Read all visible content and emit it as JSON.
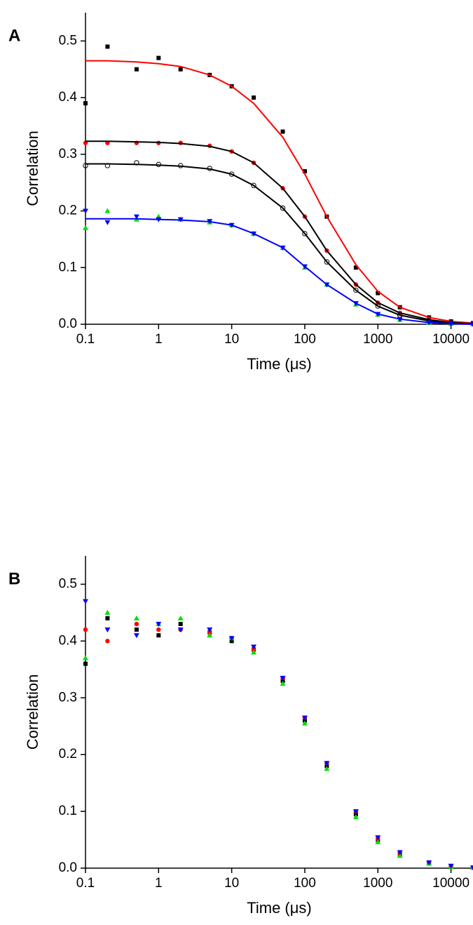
{
  "chart_data": [
    {
      "type": "scatter",
      "panel_label": "A",
      "x_label": "Time (μs)",
      "y_label": "Correlation",
      "x": [
        0.1,
        0.2,
        0.5,
        1,
        2,
        5,
        10,
        20,
        50,
        100,
        200,
        500,
        1000,
        2000,
        5000,
        10000,
        20000
      ],
      "xlim": [
        0.1,
        20000
      ],
      "xticks": [
        0.1,
        1,
        10,
        100,
        1000,
        10000
      ],
      "xscale": "log",
      "ylim": [
        0,
        0.55
      ],
      "yticks": [
        {
          "value": 0,
          "label": "0.0"
        },
        0.1,
        0.2,
        0.3,
        0.4,
        0.5
      ],
      "series": [
        {
          "marker": "square",
          "color": "#000000",
          "values": [
            0.39,
            0.49,
            0.45,
            0.47,
            0.45,
            0.44,
            0.42,
            0.4,
            0.34,
            0.27,
            0.19,
            0.1,
            0.055,
            0.03,
            0.012,
            0.005,
            0.002
          ]
        },
        {
          "marker": "line",
          "color": "#ff0000",
          "values": [
            0.465,
            0.465,
            0.463,
            0.46,
            0.455,
            0.44,
            0.42,
            0.39,
            0.33,
            0.265,
            0.19,
            0.105,
            0.058,
            0.03,
            0.012,
            0.005,
            0.002
          ]
        },
        {
          "marker": "circle",
          "color": "#ff0000",
          "values": [
            0.32,
            0.32,
            0.32,
            0.32,
            0.32,
            0.315,
            0.305,
            0.285,
            0.24,
            0.19,
            0.13,
            0.07,
            0.038,
            0.02,
            0.008,
            0.003,
            0.001
          ]
        },
        {
          "marker": "line",
          "color": "#000000",
          "values": [
            0.323,
            0.323,
            0.322,
            0.321,
            0.319,
            0.314,
            0.305,
            0.285,
            0.24,
            0.19,
            0.13,
            0.07,
            0.038,
            0.02,
            0.008,
            0.003,
            0.001
          ]
        },
        {
          "marker": "circle-open",
          "color": "#000000",
          "values": [
            0.28,
            0.28,
            0.285,
            0.282,
            0.28,
            0.275,
            0.265,
            0.245,
            0.205,
            0.16,
            0.11,
            0.06,
            0.032,
            0.016,
            0.006,
            0.002,
            0.001
          ]
        },
        {
          "marker": "line",
          "color": "#000000",
          "values": [
            0.283,
            0.283,
            0.282,
            0.281,
            0.279,
            0.274,
            0.265,
            0.245,
            0.205,
            0.16,
            0.11,
            0.06,
            0.032,
            0.016,
            0.006,
            0.002,
            0.001
          ]
        },
        {
          "marker": "triangle-up",
          "color": "#00dd00",
          "values": [
            0.17,
            0.2,
            0.185,
            0.19,
            0.185,
            0.18,
            0.175,
            0.16,
            0.135,
            0.1,
            0.07,
            0.035,
            0.017,
            0.008,
            0.003,
            0.001,
            0
          ]
        },
        {
          "marker": "triangle-down",
          "color": "#0000ff",
          "values": [
            0.2,
            0.18,
            0.19,
            0.185,
            0.185,
            0.182,
            0.175,
            0.16,
            0.135,
            0.102,
            0.07,
            0.037,
            0.018,
            0.009,
            0.003,
            0.001,
            0
          ]
        },
        {
          "marker": "line",
          "color": "#0000ff",
          "values": [
            0.186,
            0.186,
            0.186,
            0.185,
            0.184,
            0.181,
            0.175,
            0.16,
            0.135,
            0.102,
            0.07,
            0.037,
            0.018,
            0.009,
            0.003,
            0.001,
            0
          ]
        }
      ]
    },
    {
      "type": "scatter",
      "panel_label": "B",
      "x_label": "Time (μs)",
      "y_label": "Correlation",
      "x": [
        0.1,
        0.2,
        0.5,
        1,
        2,
        5,
        10,
        20,
        50,
        100,
        200,
        500,
        1000,
        2000,
        5000,
        10000,
        20000
      ],
      "xlim": [
        0.1,
        20000
      ],
      "xticks": [
        0.1,
        1,
        10,
        100,
        1000,
        10000
      ],
      "xscale": "log",
      "ylim": [
        0,
        0.55
      ],
      "yticks": [
        {
          "value": 0,
          "label": "0.0"
        },
        0.1,
        0.2,
        0.3,
        0.4,
        0.5
      ],
      "series": [
        {
          "marker": "square",
          "color": "#000000",
          "values": [
            0.36,
            0.44,
            0.42,
            0.41,
            0.43,
            0.415,
            0.4,
            0.385,
            0.33,
            0.26,
            0.18,
            0.095,
            0.05,
            0.025,
            0.009,
            0.003,
            0.001
          ]
        },
        {
          "marker": "circle",
          "color": "#ff0000",
          "values": [
            0.42,
            0.4,
            0.43,
            0.42,
            0.42,
            0.415,
            0.405,
            0.385,
            0.335,
            0.265,
            0.185,
            0.1,
            0.052,
            0.026,
            0.01,
            0.003,
            0.001
          ]
        },
        {
          "marker": "triangle-up",
          "color": "#00dd00",
          "values": [
            0.37,
            0.45,
            0.44,
            0.43,
            0.44,
            0.41,
            0.405,
            0.38,
            0.325,
            0.255,
            0.175,
            0.09,
            0.046,
            0.022,
            0.008,
            0.002,
            0.001
          ]
        },
        {
          "marker": "triangle-down",
          "color": "#0000ff",
          "values": [
            0.47,
            0.42,
            0.41,
            0.43,
            0.42,
            0.42,
            0.405,
            0.39,
            0.335,
            0.265,
            0.185,
            0.1,
            0.054,
            0.028,
            0.01,
            0.004,
            0.001
          ]
        }
      ]
    }
  ]
}
